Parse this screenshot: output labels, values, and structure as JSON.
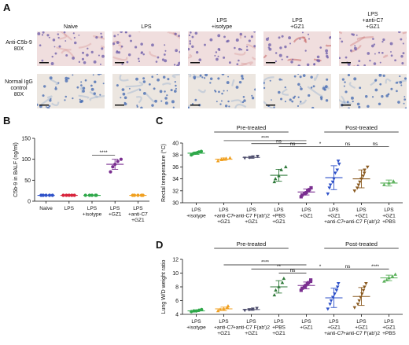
{
  "panel_labels": {
    "a": "A",
    "b": "B",
    "c": "C",
    "d": "D"
  },
  "micrographs": {
    "columns": [
      "Naive",
      "LPS",
      "LPS\n+isotype",
      "LPS\n+GZ1",
      "LPS\n+anti-C7\n+GZ1"
    ],
    "rows": [
      {
        "label": "Anti-C5b-9\n80X",
        "stain": "#c86a6a",
        "tissue": "#f0dede"
      },
      {
        "label": "Normal IgG\ncontrol\n80X",
        "stain": "#5a86c4",
        "tissue": "#ece6e0"
      }
    ]
  },
  "chart_data": [
    {
      "panel": "B",
      "type": "scatter",
      "ylabel": "C5b-9 in BALF (ng/ml)",
      "ylim": [
        0,
        150
      ],
      "yticks": [
        0,
        50,
        100,
        150
      ],
      "categories": [
        "Naive",
        "LPS",
        "LPS\n+isotype",
        "LPS\n+GZ1",
        "LPS\n+anti-C7\n+GZ1"
      ],
      "colors": [
        "#2f52c9",
        "#d8243c",
        "#2fa84a",
        "#7a2f90",
        "#f0a020"
      ],
      "markers": [
        "circle",
        "circle",
        "circle",
        "circle",
        "circle"
      ],
      "points": [
        [
          14,
          14,
          14,
          14,
          14
        ],
        [
          14,
          14,
          14,
          14,
          14
        ],
        [
          14,
          14,
          14,
          14,
          14
        ],
        [
          70,
          82,
          88,
          95,
          100
        ],
        [
          14,
          14,
          14,
          14,
          14
        ]
      ],
      "means": [
        14,
        14,
        14,
        88,
        14
      ],
      "sd": [
        0,
        0,
        0,
        12,
        0
      ],
      "significance": [
        {
          "from": 2,
          "to": 3,
          "label": "****",
          "y": 110
        }
      ]
    },
    {
      "panel": "C",
      "type": "scatter",
      "ylabel": "Rectal temperature (°C)",
      "ylim": [
        30,
        40
      ],
      "yticks": [
        30,
        32,
        34,
        36,
        38,
        40
      ],
      "categories": [
        "LPS\n+isotype",
        "LPS\n+anti-C7\n+GZ1",
        "LPS\n+anti-C7 F(ab')2\n+GZ1",
        "LPS\n+PBS\n+GZ1",
        "LPS\n+GZ1",
        "LPS\n+GZ1\n+anti-C7",
        "LPS\n+GZ1\n+anti-C7 F(ab')2",
        "LPS\n+GZ1\n+PBS"
      ],
      "colors": [
        "#2fa84a",
        "#f0a020",
        "#4a4a6a",
        "#2f7a3a",
        "#7a2f90",
        "#2f52c9",
        "#8a5a20",
        "#5ab05a"
      ],
      "markers": [
        "circle",
        "triangle-up",
        "triangle-down",
        "triangle-up",
        "square",
        "triangle-down",
        "triangle-down",
        "triangle-up"
      ],
      "points": [
        [
          38.0,
          38.2,
          38.3,
          38.4,
          38.5,
          38.6
        ],
        [
          37.0,
          37.2,
          37.3,
          37.4,
          37.5
        ],
        [
          37.5,
          37.6,
          37.7,
          37.8
        ],
        [
          33.5,
          34.0,
          34.5,
          35.5,
          36.0
        ],
        [
          31.0,
          31.3,
          31.5,
          31.7,
          32.0,
          32.2,
          32.5
        ],
        [
          31.5,
          32.5,
          33.0,
          33.5,
          34.0,
          35.0,
          35.5,
          36.5,
          37.0
        ],
        [
          32.0,
          32.5,
          33.0,
          33.5,
          34.0,
          34.5,
          35.0,
          35.5,
          36.0
        ],
        [
          33.0,
          33.3,
          33.6
        ]
      ],
      "means": [
        38.3,
        37.3,
        37.6,
        34.6,
        31.8,
        34.2,
        34.0,
        33.3
      ],
      "sd": [
        0.2,
        0.2,
        0.15,
        1.0,
        0.5,
        2.0,
        1.5,
        0.5
      ],
      "group_brackets": [
        {
          "label": "Pre-treated",
          "from": 1,
          "to": 3
        },
        {
          "label": "Post-treated",
          "from": 5,
          "to": 7
        }
      ],
      "significance": [
        {
          "from": 1,
          "to": 4,
          "label": "****",
          "y": 40.4
        },
        {
          "from": 2,
          "to": 4,
          "label": "ns",
          "y": 39.9
        },
        {
          "from": 3,
          "to": 4,
          "label": "ns",
          "y": 39.4
        },
        {
          "from": 4,
          "to": 5,
          "label": "*",
          "y": 39.4
        },
        {
          "from": 5,
          "to": 6,
          "label": "ns",
          "y": 39.4
        },
        {
          "from": 6,
          "to": 7,
          "label": "ns",
          "y": 39.4
        }
      ]
    },
    {
      "panel": "D",
      "type": "scatter",
      "ylabel": "Lung W/D weight ratio",
      "ylim": [
        4,
        12
      ],
      "yticks": [
        4,
        6,
        8,
        10,
        12
      ],
      "categories": [
        "LPS\n+isotype",
        "LPS\n+anti-C7\n+GZ1",
        "LPS\n+anti-C7 F(ab')2\n+GZ1",
        "LPS\n+PBS\n+GZ1",
        "LPS\n+GZ1",
        "LPS\n+GZ1\n+anti-C7",
        "LPS\n+GZ1\n+anti-C7 F(ab')2",
        "LPS\n+GZ1\n+PBS"
      ],
      "colors": [
        "#2fa84a",
        "#f0a020",
        "#4a4a6a",
        "#2f7a3a",
        "#7a2f90",
        "#2f52c9",
        "#8a5a20",
        "#5ab05a"
      ],
      "markers": [
        "circle",
        "triangle-up",
        "triangle-down",
        "triangle-up",
        "square",
        "triangle-down",
        "triangle-down",
        "triangle-up"
      ],
      "points": [
        [
          4.4,
          4.5,
          4.5,
          4.6,
          4.7
        ],
        [
          4.5,
          4.7,
          4.8,
          5.0,
          5.2
        ],
        [
          4.6,
          4.7,
          4.8,
          4.9
        ],
        [
          6.8,
          7.5,
          8.0,
          8.6,
          9.2
        ],
        [
          7.5,
          7.8,
          8.0,
          8.2,
          8.4,
          8.6,
          8.8,
          9.0
        ],
        [
          4.8,
          5.5,
          6.0,
          6.5,
          7.0,
          7.5,
          8.0,
          8.5
        ],
        [
          5.0,
          5.5,
          6.0,
          6.5,
          7.0,
          7.5,
          8.0,
          8.5
        ],
        [
          8.8,
          9.0,
          9.3,
          9.5,
          9.8
        ]
      ],
      "means": [
        4.5,
        4.8,
        4.7,
        8.0,
        8.2,
        6.4,
        6.6,
        9.3
      ],
      "sd": [
        0.1,
        0.25,
        0.12,
        0.9,
        0.5,
        1.4,
        1.3,
        0.4
      ],
      "group_brackets": [
        {
          "label": "Pre-treated",
          "from": 1,
          "to": 3
        },
        {
          "label": "Post-treated",
          "from": 5,
          "to": 7
        }
      ],
      "significance": [
        {
          "from": 1,
          "to": 4,
          "label": "****",
          "y": 11.2
        },
        {
          "from": 2,
          "to": 4,
          "label": "**",
          "y": 10.6
        },
        {
          "from": 3,
          "to": 4,
          "label": "ns",
          "y": 10.0
        },
        {
          "from": 4,
          "to": 5,
          "label": "*",
          "y": 10.6
        },
        {
          "from": 5,
          "to": 6,
          "label": "ns",
          "y": 10.6
        },
        {
          "from": 6,
          "to": 7,
          "label": "****",
          "y": 10.6
        }
      ]
    }
  ]
}
